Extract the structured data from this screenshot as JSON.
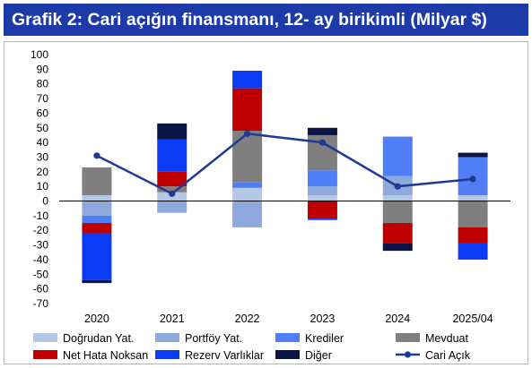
{
  "header": {
    "title": "Grafik 2: Cari açığın finansmanı, 12- ay birikimli (Milyar $)"
  },
  "chart_data": {
    "type": "bar",
    "stacked": true,
    "title": "Grafik 2: Cari açığın finansmanı, 12- ay birikimli (Milyar $)",
    "xlabel": "",
    "ylabel": "",
    "categories": [
      "2020",
      "2021",
      "2022",
      "2023",
      "2024",
      "2025/04"
    ],
    "ylim": [
      -70,
      100
    ],
    "yticks": [
      "100",
      "90",
      "80",
      "70",
      "60",
      "50",
      "40",
      "30",
      "20",
      "10",
      "0",
      "-10",
      "-20",
      "-30",
      "-40",
      "-50",
      "-60",
      "-70"
    ],
    "grid": false,
    "legend_position": "bottom",
    "series": [
      {
        "name": "Doğrudan Yat.",
        "color": "#b4c7e7",
        "values": [
          4,
          6,
          9,
          4,
          4,
          4
        ]
      },
      {
        "name": "Portföy Yat.",
        "color": "#8ea9db",
        "values": [
          -10,
          -8,
          -18,
          6,
          13,
          0
        ]
      },
      {
        "name": "Krediler",
        "color": "#4f7ef6",
        "values": [
          -5,
          0,
          4,
          11,
          27,
          26
        ]
      },
      {
        "name": "Mevduat",
        "color": "#7f7f7f",
        "values": [
          19,
          4,
          35,
          24,
          -15,
          -18
        ]
      },
      {
        "name": "Net Hata Noksan",
        "color": "#c00000",
        "values": [
          -7,
          10,
          29,
          -12,
          -14,
          -11
        ]
      },
      {
        "name": "Rezerv Varlıklar",
        "color": "#0b3cf5",
        "values": [
          -32,
          22,
          12,
          -1,
          0,
          -11
        ]
      },
      {
        "name": "Diğer",
        "color": "#0c1446",
        "values": [
          -2,
          11,
          0,
          5,
          -5,
          3
        ]
      }
    ],
    "line": {
      "name": "Cari Açık",
      "color": "#1f3a93",
      "values": [
        31,
        5,
        46,
        40,
        10,
        15
      ]
    }
  }
}
